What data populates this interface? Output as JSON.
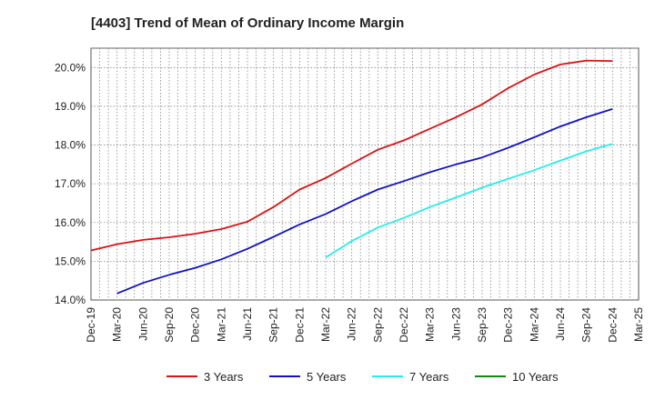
{
  "chart_data": {
    "type": "line",
    "title": "[4403]  Trend of Mean of Ordinary Income Margin",
    "xlabel": "",
    "ylabel": "",
    "x_ticks": [
      "Dec-19",
      "Mar-20",
      "Jun-20",
      "Sep-20",
      "Dec-20",
      "Mar-21",
      "Jun-21",
      "Sep-21",
      "Dec-21",
      "Mar-22",
      "Jun-22",
      "Sep-22",
      "Dec-22",
      "Mar-23",
      "Jun-23",
      "Sep-23",
      "Dec-23",
      "Mar-24",
      "Jun-24",
      "Sep-24",
      "Dec-24",
      "Mar-25"
    ],
    "y_ticks": [
      "14.0%",
      "15.0%",
      "16.0%",
      "17.0%",
      "18.0%",
      "19.0%",
      "20.0%"
    ],
    "ylim": [
      14.0,
      20.5
    ],
    "grid": true,
    "legend_position": "bottom",
    "series": [
      {
        "name": "3 Years",
        "color": "#dd1111",
        "x": [
          "Dec-19",
          "Mar-20",
          "Jun-20",
          "Sep-20",
          "Dec-20",
          "Mar-21",
          "Jun-21",
          "Sep-21",
          "Dec-21",
          "Mar-22",
          "Jun-22",
          "Sep-22",
          "Dec-22",
          "Mar-23",
          "Jun-23",
          "Sep-23",
          "Dec-23",
          "Mar-24",
          "Jun-24",
          "Sep-24",
          "Dec-24"
        ],
        "values": [
          15.28,
          15.44,
          15.55,
          15.62,
          15.71,
          15.83,
          16.02,
          16.4,
          16.85,
          17.15,
          17.52,
          17.88,
          18.12,
          18.42,
          18.72,
          19.05,
          19.47,
          19.82,
          20.08,
          20.18,
          20.17
        ]
      },
      {
        "name": "5 Years",
        "color": "#1111cc",
        "x": [
          "Mar-20",
          "Jun-20",
          "Sep-20",
          "Dec-20",
          "Mar-21",
          "Jun-21",
          "Sep-21",
          "Dec-21",
          "Mar-22",
          "Jun-22",
          "Sep-22",
          "Dec-22",
          "Mar-23",
          "Jun-23",
          "Sep-23",
          "Dec-23",
          "Mar-24",
          "Jun-24",
          "Sep-24",
          "Dec-24"
        ],
        "values": [
          14.17,
          14.44,
          14.65,
          14.83,
          15.05,
          15.32,
          15.63,
          15.95,
          16.22,
          16.55,
          16.85,
          17.07,
          17.3,
          17.5,
          17.68,
          17.93,
          18.2,
          18.48,
          18.72,
          18.93
        ]
      },
      {
        "name": "7 Years",
        "color": "#22eeee",
        "x": [
          "Mar-22",
          "Jun-22",
          "Sep-22",
          "Dec-22",
          "Mar-23",
          "Jun-23",
          "Sep-23",
          "Dec-23",
          "Mar-24",
          "Jun-24",
          "Sep-24",
          "Dec-24"
        ],
        "values": [
          15.1,
          15.52,
          15.87,
          16.12,
          16.4,
          16.65,
          16.9,
          17.13,
          17.35,
          17.6,
          17.84,
          18.03
        ]
      },
      {
        "name": "10 Years",
        "color": "#118811",
        "x": [],
        "values": []
      }
    ]
  }
}
